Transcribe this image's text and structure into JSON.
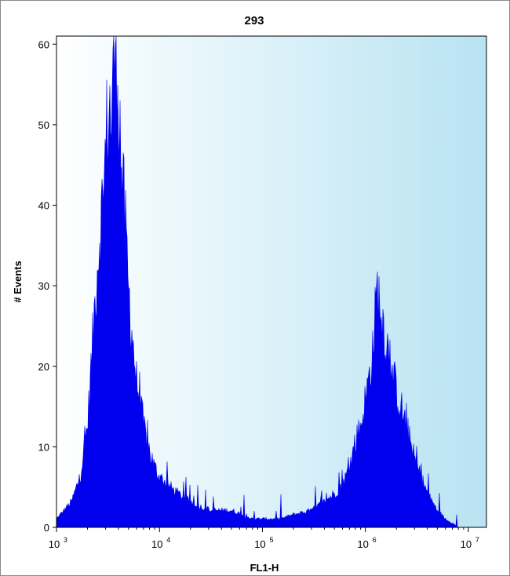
{
  "chart_data": {
    "type": "area",
    "title": "293",
    "xlabel": "FL1-H",
    "ylabel": "# Events",
    "x_scale": "log",
    "xlim": [
      1000,
      15000000
    ],
    "ylim": [
      0,
      61
    ],
    "grid": false,
    "legend": "none",
    "x_ticks": [
      {
        "value": 1000,
        "base": "10",
        "exp": "3"
      },
      {
        "value": 10000,
        "base": "10",
        "exp": "4"
      },
      {
        "value": 100000,
        "base": "10",
        "exp": "5"
      },
      {
        "value": 1000000,
        "base": "10",
        "exp": "6"
      },
      {
        "value": 10000000,
        "base": "10",
        "exp": "7"
      }
    ],
    "y_ticks": [
      0,
      10,
      20,
      30,
      40,
      50,
      60
    ],
    "series": [
      {
        "x": [
          1000,
          1400,
          1700,
          2000,
          2200,
          2400,
          2600,
          2800,
          3000,
          3200,
          3400,
          3600,
          3800,
          4000,
          4200,
          4400,
          4700,
          5000,
          5500,
          6000,
          7000,
          8000,
          9000,
          10000,
          12000,
          15000,
          20000,
          30000,
          50000,
          80000,
          100000,
          150000,
          200000,
          300000,
          400000,
          500000,
          600000,
          700000,
          800000,
          900000,
          1000000,
          1100000,
          1200000,
          1300000,
          1500000,
          1700000,
          2000000,
          2500000,
          3000000,
          4000000,
          5000000,
          6000000,
          7000000,
          8000000
        ],
        "y": [
          1,
          3,
          6,
          12,
          20,
          28,
          34,
          38,
          44,
          50,
          48,
          55,
          58,
          52,
          45,
          40,
          34,
          28,
          22,
          17,
          12,
          9,
          7,
          6,
          5,
          4,
          3,
          2,
          2,
          1,
          1,
          1,
          1.5,
          2,
          3,
          4,
          5,
          7,
          10,
          12,
          15,
          18,
          22,
          28,
          24,
          20,
          16,
          12,
          8,
          4,
          2,
          1,
          0.5,
          0
        ]
      }
    ],
    "colors": {
      "fill": "#0000ee",
      "plot_bg_left": "#ffffff",
      "plot_bg_right": "#b8e3f2"
    }
  }
}
